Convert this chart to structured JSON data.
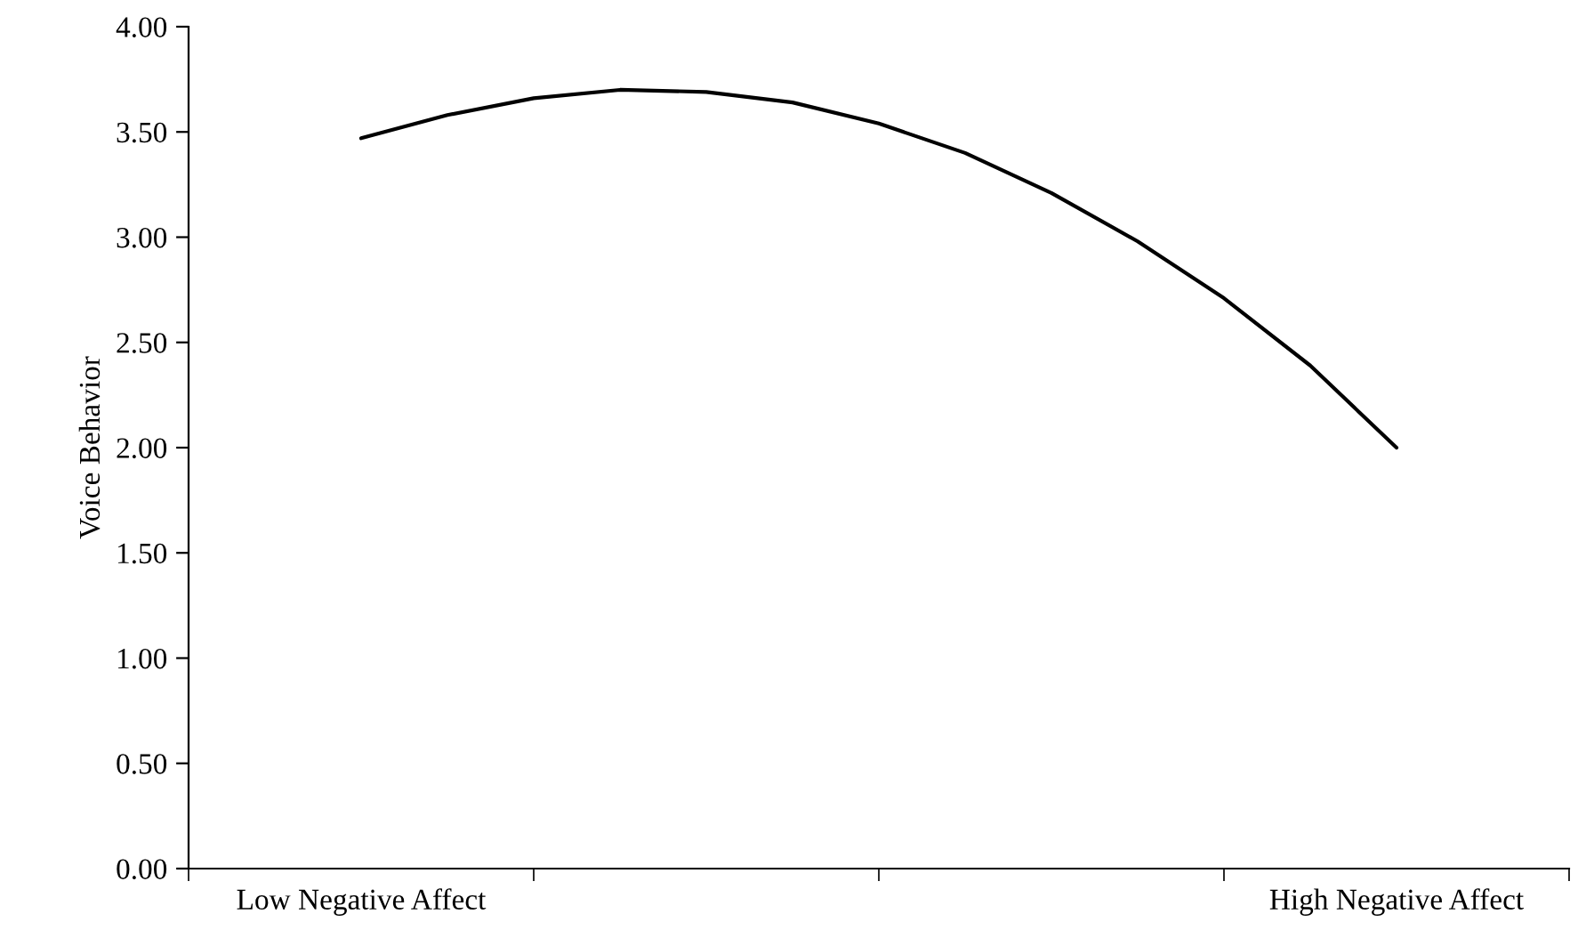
{
  "chart_data": {
    "type": "line",
    "ylabel": "Voice Behavior",
    "categories": [
      "Low Negative Affect",
      null,
      null,
      null,
      null,
      null,
      null,
      null,
      null,
      null,
      null,
      null,
      "High Negative Affect"
    ],
    "series": [
      {
        "color": "#000000",
        "values": [
          3.47,
          3.58,
          3.66,
          3.7,
          3.69,
          3.64,
          3.54,
          3.4,
          3.21,
          2.98,
          2.71,
          2.39,
          2.0
        ]
      }
    ],
    "ylim": [
      0,
      4
    ],
    "yticks": [
      {
        "value": 0,
        "label": "0.00"
      },
      {
        "value": 0.5,
        "label": "0.50"
      },
      {
        "value": 1,
        "label": "1.00"
      },
      {
        "value": 1.5,
        "label": "1.50"
      },
      {
        "value": 2,
        "label": "2.00"
      },
      {
        "value": 2.5,
        "label": "2.50"
      },
      {
        "value": 3,
        "label": "3.00"
      },
      {
        "value": 3.5,
        "label": "3.50"
      },
      {
        "value": 4,
        "label": "4.00"
      }
    ],
    "grid": false,
    "marker": "none",
    "line_style": "solid"
  }
}
